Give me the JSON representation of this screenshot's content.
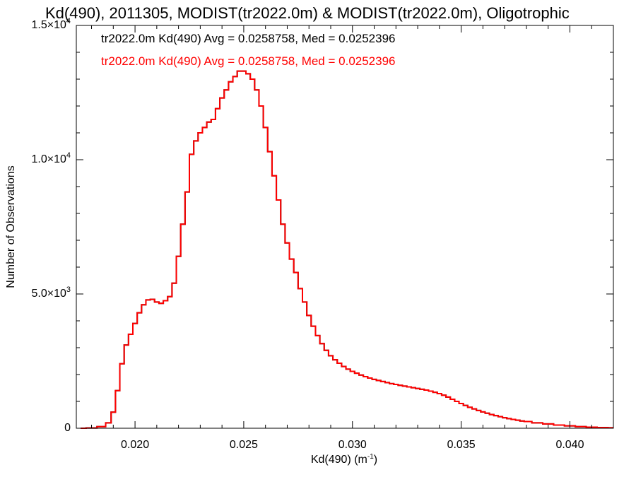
{
  "colors": {
    "background": "#ffffff",
    "axis": "#000000",
    "series_black": "#000000",
    "series_red": "#ff0000"
  },
  "chart_data": {
    "type": "histogram",
    "title": "Kd(490), 2011305, MODIST(tr2022.0m) & MODIST(tr2022.0m), Oligotrophic",
    "xlabel": "Kd(490) (m",
    "xlabel_sup": "-1",
    "xlabel_tail": ")",
    "ylabel": "Number of Observations",
    "xlim": [
      0.0173,
      0.042
    ],
    "ylim": [
      0,
      15000
    ],
    "x_ticks": [
      0.02,
      0.025,
      0.03,
      0.035,
      0.04
    ],
    "x_tick_labels": [
      "0.020",
      "0.025",
      "0.030",
      "0.035",
      "0.040"
    ],
    "y_ticks": [
      {
        "value": 0,
        "mantissa": "0",
        "exp": ""
      },
      {
        "value": 5000,
        "mantissa": "5.0×10",
        "exp": "3"
      },
      {
        "value": 10000,
        "mantissa": "1.0×10",
        "exp": "4"
      },
      {
        "value": 15000,
        "mantissa": "1.5×10",
        "exp": "4"
      }
    ],
    "annotations": [
      {
        "text": "tr2022.0m Kd(490) Avg = 0.0258758, Med = 0.0252396",
        "color": "#000000"
      },
      {
        "text": "tr2022.0m Kd(490) Avg = 0.0258758, Med = 0.0252396",
        "color": "#ff0000"
      }
    ],
    "series": [
      {
        "color": "#000000",
        "x": [
          0.0175,
          0.018,
          0.0185,
          0.0188,
          0.019,
          0.0192,
          0.0194,
          0.0196,
          0.0198,
          0.02,
          0.0202,
          0.0204,
          0.0206,
          0.0208,
          0.021,
          0.0212,
          0.0214,
          0.0216,
          0.0218,
          0.022,
          0.0222,
          0.0224,
          0.0226,
          0.0228,
          0.023,
          0.0232,
          0.0234,
          0.0236,
          0.0238,
          0.024,
          0.0242,
          0.0244,
          0.0246,
          0.0248,
          0.025,
          0.0252,
          0.0254,
          0.0256,
          0.0258,
          0.026,
          0.0262,
          0.0264,
          0.0266,
          0.0268,
          0.027,
          0.0272,
          0.0274,
          0.0276,
          0.0278,
          0.028,
          0.0282,
          0.0284,
          0.0286,
          0.0288,
          0.029,
          0.0292,
          0.0294,
          0.0296,
          0.0298,
          0.03,
          0.0302,
          0.0304,
          0.0306,
          0.0308,
          0.031,
          0.0312,
          0.0314,
          0.0316,
          0.0318,
          0.032,
          0.0322,
          0.0324,
          0.0326,
          0.0328,
          0.033,
          0.0332,
          0.0334,
          0.0336,
          0.0338,
          0.034,
          0.0342,
          0.0344,
          0.0346,
          0.0348,
          0.035,
          0.0352,
          0.0354,
          0.0356,
          0.0358,
          0.036,
          0.0362,
          0.0364,
          0.0366,
          0.0368,
          0.037,
          0.0372,
          0.0374,
          0.0376,
          0.0378,
          0.038,
          0.0385,
          0.039,
          0.0395,
          0.04,
          0.0405,
          0.041,
          0.0415,
          0.042
        ],
        "y": [
          0,
          10,
          60,
          200,
          600,
          1400,
          2400,
          3100,
          3500,
          3900,
          4300,
          4600,
          4780,
          4800,
          4700,
          4650,
          4750,
          4900,
          5400,
          6400,
          7600,
          8800,
          10200,
          10700,
          11000,
          11200,
          11400,
          11500,
          11900,
          12300,
          12600,
          12900,
          13100,
          13300,
          13300,
          13200,
          13000,
          12600,
          12000,
          11200,
          10300,
          9400,
          8500,
          7600,
          6900,
          6300,
          5800,
          5200,
          4700,
          4200,
          3800,
          3450,
          3150,
          2900,
          2700,
          2550,
          2420,
          2300,
          2200,
          2120,
          2050,
          1980,
          1920,
          1870,
          1820,
          1780,
          1740,
          1700,
          1660,
          1630,
          1600,
          1570,
          1540,
          1510,
          1480,
          1450,
          1420,
          1380,
          1340,
          1290,
          1230,
          1160,
          1080,
          1000,
          920,
          850,
          780,
          720,
          660,
          610,
          560,
          510,
          470,
          430,
          390,
          360,
          330,
          300,
          270,
          250,
          200,
          160,
          120,
          90,
          60,
          40,
          25,
          15
        ]
      },
      {
        "color": "#ff0000",
        "x": [
          0.0175,
          0.018,
          0.0185,
          0.0188,
          0.019,
          0.0192,
          0.0194,
          0.0196,
          0.0198,
          0.02,
          0.0202,
          0.0204,
          0.0206,
          0.0208,
          0.021,
          0.0212,
          0.0214,
          0.0216,
          0.0218,
          0.022,
          0.0222,
          0.0224,
          0.0226,
          0.0228,
          0.023,
          0.0232,
          0.0234,
          0.0236,
          0.0238,
          0.024,
          0.0242,
          0.0244,
          0.0246,
          0.0248,
          0.025,
          0.0252,
          0.0254,
          0.0256,
          0.0258,
          0.026,
          0.0262,
          0.0264,
          0.0266,
          0.0268,
          0.027,
          0.0272,
          0.0274,
          0.0276,
          0.0278,
          0.028,
          0.0282,
          0.0284,
          0.0286,
          0.0288,
          0.029,
          0.0292,
          0.0294,
          0.0296,
          0.0298,
          0.03,
          0.0302,
          0.0304,
          0.0306,
          0.0308,
          0.031,
          0.0312,
          0.0314,
          0.0316,
          0.0318,
          0.032,
          0.0322,
          0.0324,
          0.0326,
          0.0328,
          0.033,
          0.0332,
          0.0334,
          0.0336,
          0.0338,
          0.034,
          0.0342,
          0.0344,
          0.0346,
          0.0348,
          0.035,
          0.0352,
          0.0354,
          0.0356,
          0.0358,
          0.036,
          0.0362,
          0.0364,
          0.0366,
          0.0368,
          0.037,
          0.0372,
          0.0374,
          0.0376,
          0.0378,
          0.038,
          0.0385,
          0.039,
          0.0395,
          0.04,
          0.0405,
          0.041,
          0.0415,
          0.042
        ],
        "y": [
          0,
          10,
          60,
          200,
          600,
          1400,
          2400,
          3100,
          3500,
          3900,
          4300,
          4600,
          4780,
          4800,
          4700,
          4650,
          4750,
          4900,
          5400,
          6400,
          7600,
          8800,
          10200,
          10700,
          11000,
          11200,
          11400,
          11500,
          11900,
          12300,
          12600,
          12900,
          13100,
          13300,
          13300,
          13200,
          13000,
          12600,
          12000,
          11200,
          10300,
          9400,
          8500,
          7600,
          6900,
          6300,
          5800,
          5200,
          4700,
          4200,
          3800,
          3450,
          3150,
          2900,
          2700,
          2550,
          2420,
          2300,
          2200,
          2120,
          2050,
          1980,
          1920,
          1870,
          1820,
          1780,
          1740,
          1700,
          1660,
          1630,
          1600,
          1570,
          1540,
          1510,
          1480,
          1450,
          1420,
          1380,
          1340,
          1290,
          1230,
          1160,
          1080,
          1000,
          920,
          850,
          780,
          720,
          660,
          610,
          560,
          510,
          470,
          430,
          390,
          360,
          330,
          300,
          270,
          250,
          200,
          160,
          120,
          90,
          60,
          40,
          25,
          15
        ]
      }
    ]
  }
}
